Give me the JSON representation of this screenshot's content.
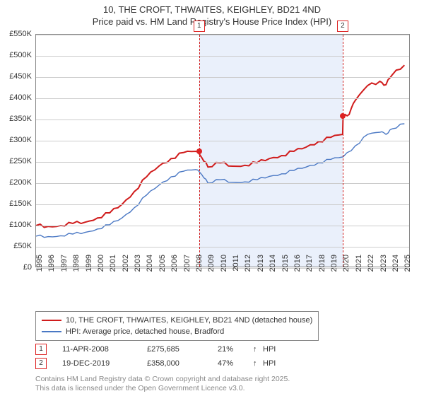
{
  "title_line1": "10, THE CROFT, THWAITES, KEIGHLEY, BD21 4ND",
  "title_line2": "Price paid vs. HM Land Registry's House Price Index (HPI)",
  "chart": {
    "ylim": [
      0,
      550
    ],
    "ytick_step": 50,
    "ytick_prefix": "£",
    "ytick_suffix": "K",
    "x_years": [
      1995,
      1996,
      1997,
      1998,
      1999,
      2000,
      2001,
      2002,
      2003,
      2004,
      2005,
      2006,
      2007,
      2008,
      2009,
      2010,
      2011,
      2012,
      2013,
      2014,
      2015,
      2016,
      2017,
      2018,
      2019,
      2020,
      2021,
      2022,
      2023,
      2024,
      2025
    ],
    "grid_color": "#cccccc",
    "border_color": "#888888",
    "background_color": "#ffffff",
    "shade_color": "#eaf0fb",
    "shade_from_year": 2008.28,
    "shade_to_year": 2019.97,
    "series": [
      {
        "name": "property",
        "label": "10, THE CROFT, THWAITES, KEIGHLEY, BD21 4ND (detached house)",
        "color": "#d01c1c",
        "width": 2,
        "data": [
          [
            1995,
            100
          ],
          [
            1996,
            98
          ],
          [
            1997,
            100
          ],
          [
            1998,
            105
          ],
          [
            1999,
            108
          ],
          [
            2000,
            118
          ],
          [
            2001,
            130
          ],
          [
            2002,
            150
          ],
          [
            2003,
            180
          ],
          [
            2004,
            215
          ],
          [
            2005,
            240
          ],
          [
            2006,
            258
          ],
          [
            2007,
            272
          ],
          [
            2008,
            275
          ],
          [
            2008.5,
            260
          ],
          [
            2009,
            238
          ],
          [
            2010,
            248
          ],
          [
            2011,
            240
          ],
          [
            2012,
            242
          ],
          [
            2013,
            248
          ],
          [
            2014,
            258
          ],
          [
            2015,
            265
          ],
          [
            2016,
            275
          ],
          [
            2017,
            285
          ],
          [
            2018,
            298
          ],
          [
            2019,
            308
          ],
          [
            2019.97,
            315
          ],
          [
            2020,
            358
          ],
          [
            2020.5,
            362
          ],
          [
            2021,
            395
          ],
          [
            2022,
            430
          ],
          [
            2023,
            440
          ],
          [
            2023.5,
            432
          ],
          [
            2024,
            455
          ],
          [
            2025,
            478
          ]
        ]
      },
      {
        "name": "hpi",
        "label": "HPI: Average price, detached house, Bradford",
        "color": "#4a78c4",
        "width": 1.4,
        "data": [
          [
            1995,
            75
          ],
          [
            1996,
            74
          ],
          [
            1997,
            76
          ],
          [
            1998,
            80
          ],
          [
            1999,
            84
          ],
          [
            2000,
            92
          ],
          [
            2001,
            102
          ],
          [
            2002,
            118
          ],
          [
            2003,
            142
          ],
          [
            2004,
            172
          ],
          [
            2005,
            195
          ],
          [
            2006,
            215
          ],
          [
            2007,
            228
          ],
          [
            2008,
            232
          ],
          [
            2008.5,
            220
          ],
          [
            2009,
            200
          ],
          [
            2010,
            208
          ],
          [
            2011,
            202
          ],
          [
            2012,
            203
          ],
          [
            2013,
            208
          ],
          [
            2014,
            216
          ],
          [
            2015,
            222
          ],
          [
            2016,
            230
          ],
          [
            2017,
            238
          ],
          [
            2018,
            248
          ],
          [
            2019,
            256
          ],
          [
            2020,
            262
          ],
          [
            2021,
            288
          ],
          [
            2022,
            315
          ],
          [
            2023,
            320
          ],
          [
            2023.5,
            315
          ],
          [
            2024,
            328
          ],
          [
            2025,
            340
          ]
        ]
      }
    ],
    "sale_markers": [
      {
        "label": "1",
        "year": 2008.28,
        "value": 275
      },
      {
        "label": "2",
        "year": 2019.97,
        "value": 358
      }
    ],
    "marker_border": "#d01c1c",
    "dash_color": "#d01c1c"
  },
  "legend": {
    "items": [
      {
        "color": "#d01c1c",
        "text": "10, THE CROFT, THWAITES, KEIGHLEY, BD21 4ND (detached house)"
      },
      {
        "color": "#4a78c4",
        "text": "HPI: Average price, detached house, Bradford"
      }
    ]
  },
  "sales": [
    {
      "num": "1",
      "date": "11-APR-2008",
      "price": "£275,685",
      "pct": "21%",
      "arrow": "↑",
      "suffix": "HPI"
    },
    {
      "num": "2",
      "date": "19-DEC-2019",
      "price": "£358,000",
      "pct": "47%",
      "arrow": "↑",
      "suffix": "HPI"
    }
  ],
  "disclaimer1": "Contains HM Land Registry data © Crown copyright and database right 2025.",
  "disclaimer2": "This data is licensed under the Open Government Licence v3.0."
}
